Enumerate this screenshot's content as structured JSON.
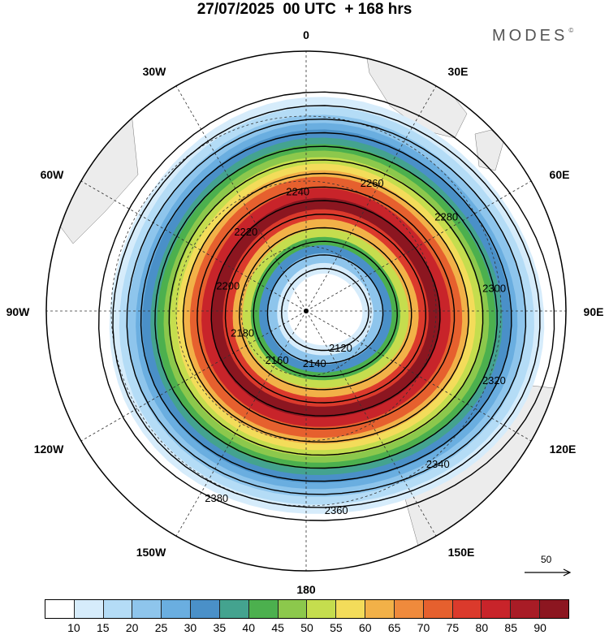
{
  "header": {
    "title": "27/07/2025  00 UTC  + 168 hrs",
    "brand": "MODES"
  },
  "longitude_labels": {
    "n": "0",
    "nnw": "30W",
    "nne": "30E",
    "wnw": "60W",
    "ene": "60E",
    "w": "90W",
    "e": "90E",
    "wsw": "120W",
    "ese": "120E",
    "ssw": "150W",
    "sse": "150E",
    "s": "180"
  },
  "contours": [
    {
      "label": "2120"
    },
    {
      "label": "2140"
    },
    {
      "label": "2160"
    },
    {
      "label": "2180"
    },
    {
      "label": "2200"
    },
    {
      "label": "2220"
    },
    {
      "label": "2240"
    },
    {
      "label": "2260"
    },
    {
      "label": "2280"
    },
    {
      "label": "2300"
    },
    {
      "label": "2320"
    },
    {
      "label": "2340"
    },
    {
      "label": "2360"
    },
    {
      "label": "2380"
    }
  ],
  "reference_vector": {
    "value": "50"
  },
  "colorbar": {
    "colors": [
      "#ffffff",
      "#d6ecfb",
      "#b4dcf6",
      "#8ec5ec",
      "#6aaee0",
      "#4a90c8",
      "#44a38f",
      "#4cb04e",
      "#8cc84c",
      "#c5dd4e",
      "#f3dc5a",
      "#f2b148",
      "#ef8a3c",
      "#e6602e",
      "#db3a2c",
      "#c8242a",
      "#a81c26",
      "#8c1620"
    ],
    "ticks": [
      "10",
      "15",
      "20",
      "25",
      "30",
      "35",
      "40",
      "45",
      "50",
      "55",
      "60",
      "65",
      "70",
      "75",
      "80",
      "85",
      "90"
    ]
  }
}
